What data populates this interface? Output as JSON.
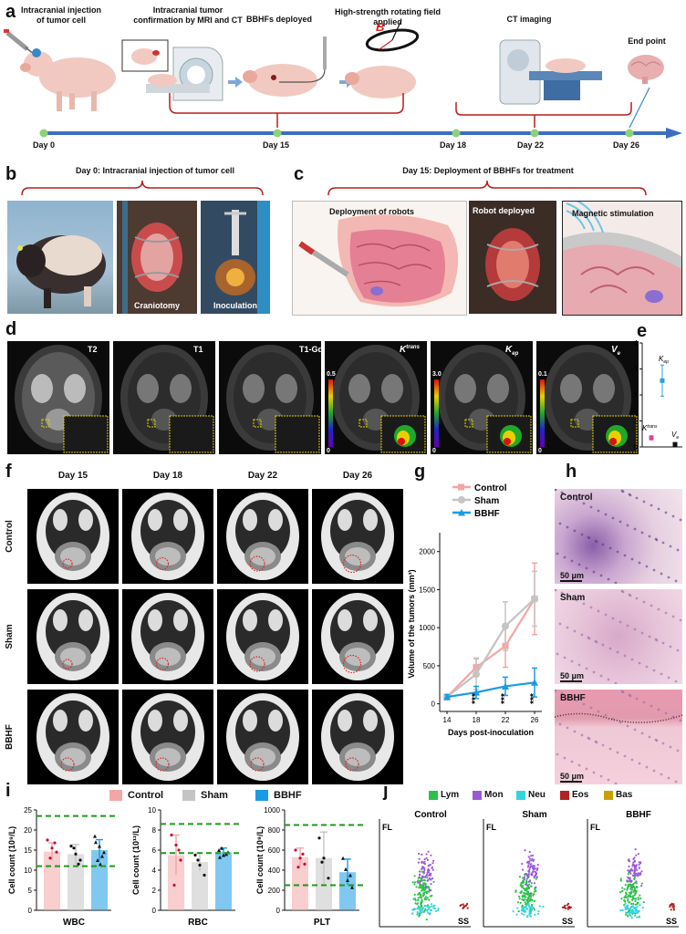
{
  "panel_a": {
    "label": "a",
    "steps": [
      "Intracranial injection of tumor cell",
      "Intracranial tumor confirmation by MRI and CT",
      "BBHFs deployed",
      "High-strength rotating field applied",
      "CT imaging",
      "End point"
    ],
    "days": [
      "Day 0",
      "Day 15",
      "Day 18",
      "Day 22",
      "Day 26"
    ],
    "b_symbol": "B"
  },
  "panel_b": {
    "label": "b",
    "title": "Day 0: Intracranial injection of tumor cell",
    "photos": [
      "Craniotomy",
      "Inoculation"
    ]
  },
  "panel_c": {
    "label": "c",
    "title": "Day 15: Deployment of BBHFs for treatment",
    "captions": [
      "Deployment of robots",
      "Robot deployed",
      "Magnetic stimulation"
    ]
  },
  "panel_d": {
    "label": "d",
    "images": [
      "T2",
      "T1",
      "T1-Gd",
      "Ktrans",
      "Kep",
      "Ve"
    ],
    "scales": [
      {
        "max": "0.5",
        "min": "0"
      },
      {
        "max": "3.0",
        "min": "0"
      },
      {
        "max": "0.1",
        "min": "0"
      }
    ]
  },
  "panel_e": {
    "label": "e",
    "chart_data": {
      "type": "scatter",
      "categories": [
        "Ktrans",
        "Kep",
        "Ve"
      ],
      "values": [
        0.35,
        2.55,
        0.1
      ],
      "errors": [
        0.08,
        0.6,
        0.02
      ],
      "ylim": [
        0,
        4
      ],
      "yticks": [
        "0",
        "1",
        "2",
        "3",
        "4"
      ],
      "colors": [
        "#e0449a",
        "#2ba3d9",
        "#111111"
      ]
    }
  },
  "panel_f": {
    "label": "f",
    "columns": [
      "Day 15",
      "Day 18",
      "Day 22",
      "Day 26"
    ],
    "rows": [
      "Control",
      "Sham",
      "BBHF"
    ]
  },
  "panel_g": {
    "label": "g",
    "chart_data": {
      "type": "line",
      "x": [
        14,
        18,
        22,
        26
      ],
      "xticks": [
        "14",
        "18",
        "22",
        "26"
      ],
      "xlabel": "Days post-inoculation",
      "ylabel": "Volume of the tumors (mm³)",
      "ylim": [
        -100,
        2200
      ],
      "yticks": [
        "0",
        "500",
        "1000",
        "1500",
        "2000"
      ],
      "series": [
        {
          "name": "Control",
          "color": "#f4a5a5",
          "values": [
            90,
            480,
            760,
            1380
          ],
          "errors": [
            30,
            120,
            280,
            470
          ]
        },
        {
          "name": "Sham",
          "color": "#c4c4c4",
          "values": [
            90,
            390,
            1020,
            1380
          ],
          "errors": [
            30,
            200,
            320,
            360
          ]
        },
        {
          "name": "BBHF",
          "color": "#1a9be6",
          "values": [
            90,
            150,
            230,
            280
          ],
          "errors": [
            30,
            80,
            120,
            190
          ]
        }
      ],
      "annotations": [
        "***",
        "***",
        "***"
      ]
    }
  },
  "panel_h": {
    "label": "h",
    "images": [
      "Control",
      "Sham",
      "BBHF"
    ],
    "scalebar": "50 μm"
  },
  "panel_i": {
    "label": "i",
    "legend": [
      "Control",
      "Sham",
      "BBHF"
    ],
    "colors": [
      "#f4a5a5",
      "#c4c4c4",
      "#1a9be6"
    ],
    "chart_data": [
      {
        "type": "bar",
        "xlabel": "WBC",
        "ylabel": "Cell count (10⁹/L)",
        "categories": [
          "Control",
          "Sham",
          "BBHF"
        ],
        "values": [
          14.6,
          14.0,
          15.0
        ],
        "errors": [
          2.2,
          2.4,
          2.6
        ],
        "ylim": [
          0,
          25
        ],
        "yticks": [
          "0",
          "5",
          "10",
          "15",
          "20",
          "25"
        ],
        "ref_lines": [
          11.0,
          23.5
        ],
        "points": [
          [
            17.5,
            15.5,
            14.5,
            13.0,
            16.8
          ],
          [
            16.0,
            14.0,
            12.5,
            15.5,
            11.5
          ],
          [
            18.5,
            16.0,
            14.5,
            12.5,
            13.5,
            17.0,
            11.5
          ]
        ]
      },
      {
        "type": "bar",
        "xlabel": "RBC",
        "ylabel": "Cell count (10¹²/L)",
        "categories": [
          "Control",
          "Sham",
          "BBHF"
        ],
        "values": [
          5.5,
          4.8,
          5.8
        ],
        "errors": [
          2.0,
          0.9,
          0.4
        ],
        "ylim": [
          0,
          10
        ],
        "yticks": [
          "0",
          "2",
          "4",
          "6",
          "8",
          "10"
        ],
        "ref_lines": [
          5.7,
          8.6
        ],
        "points": [
          [
            7.5,
            6.5,
            5.0,
            2.5,
            6.0
          ],
          [
            5.5,
            4.5,
            3.5,
            5.0
          ],
          [
            6.0,
            5.5,
            5.8,
            6.2,
            5.6,
            5.3
          ]
        ]
      },
      {
        "type": "bar",
        "xlabel": "PLT",
        "ylabel": "Cell count (10⁹/L)",
        "categories": [
          "Control",
          "Sham",
          "BBHF"
        ],
        "values": [
          530,
          520,
          380
        ],
        "errors": [
          90,
          260,
          130
        ],
        "ylim": [
          0,
          1000
        ],
        "yticks": [
          "0",
          "200",
          "400",
          "600",
          "800",
          "1000"
        ],
        "ref_lines": [
          250,
          850
        ],
        "points": [
          [
            600,
            520,
            460,
            430,
            560
          ],
          [
            720,
            520,
            320,
            480
          ],
          [
            520,
            300,
            230,
            410,
            350
          ]
        ]
      }
    ]
  },
  "panel_j": {
    "label": "j",
    "legend": [
      {
        "name": "Lym",
        "color": "#2bc24a"
      },
      {
        "name": "Mon",
        "color": "#9b59d6"
      },
      {
        "name": "Neu",
        "color": "#34d4e0"
      },
      {
        "name": "Eos",
        "color": "#b22222"
      },
      {
        "name": "Bas",
        "color": "#c9a000"
      }
    ],
    "titles": [
      "Control",
      "Sham",
      "BBHF"
    ],
    "ylabel": "FL",
    "xlabel": "SS"
  }
}
